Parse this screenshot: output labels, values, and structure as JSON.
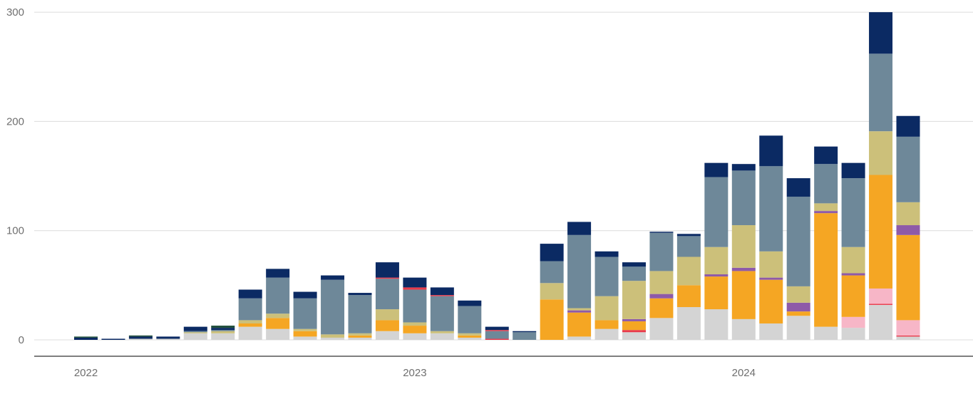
{
  "chart_data": {
    "type": "bar",
    "stacked": true,
    "ylim": [
      0,
      300
    ],
    "y_ticks": [
      0,
      100,
      200,
      300
    ],
    "x_tick_labels": [
      {
        "label": "2022",
        "at_bar": 0
      },
      {
        "label": "2023",
        "at_bar": 12
      },
      {
        "label": "2024",
        "at_bar": 24
      }
    ],
    "grid": true,
    "legend": "none",
    "series": [
      {
        "color": "#d4d4d4",
        "values": [
          0,
          0,
          1,
          1,
          6,
          6,
          12,
          10,
          3,
          2,
          2,
          8,
          6,
          6,
          2,
          0,
          0,
          0,
          3,
          10,
          7,
          20,
          30,
          28,
          19,
          15,
          22,
          12,
          11,
          32,
          3
        ]
      },
      {
        "color": "#e8394a",
        "values": [
          0,
          0,
          0,
          0,
          0,
          0,
          0,
          0,
          0,
          0,
          0,
          0,
          0,
          0,
          0,
          1,
          0,
          0,
          0,
          0,
          2,
          0,
          0,
          0,
          0,
          0,
          0,
          0,
          0,
          1,
          1
        ]
      },
      {
        "color": "#f7b6c7",
        "values": [
          0,
          0,
          0,
          0,
          0,
          0,
          0,
          0,
          0,
          0,
          0,
          0,
          0,
          0,
          0,
          0,
          0,
          0,
          0,
          0,
          0,
          0,
          0,
          0,
          0,
          0,
          0,
          0,
          10,
          14,
          14
        ]
      },
      {
        "color": "#f5a623",
        "values": [
          0,
          0,
          0,
          0,
          0,
          0,
          3,
          10,
          5,
          0,
          2,
          10,
          7,
          0,
          2,
          0,
          0,
          37,
          22,
          8,
          8,
          18,
          20,
          30,
          44,
          40,
          4,
          104,
          38,
          104,
          78
        ]
      },
      {
        "color": "#8e5aa8",
        "values": [
          0,
          0,
          0,
          0,
          0,
          0,
          0,
          0,
          0,
          0,
          0,
          0,
          0,
          0,
          0,
          0,
          0,
          0,
          2,
          0,
          2,
          4,
          0,
          2,
          3,
          2,
          8,
          2,
          2,
          0,
          9
        ]
      },
      {
        "color": "#ccc07a",
        "values": [
          0,
          0,
          0,
          0,
          1,
          2,
          3,
          4,
          2,
          3,
          2,
          10,
          3,
          2,
          2,
          0,
          0,
          15,
          2,
          22,
          35,
          21,
          26,
          25,
          39,
          24,
          15,
          7,
          24,
          40,
          21
        ]
      },
      {
        "color": "#6e8899",
        "values": [
          0,
          0,
          0,
          0,
          1,
          1,
          20,
          33,
          28,
          50,
          35,
          28,
          30,
          32,
          25,
          7,
          7,
          20,
          67,
          36,
          13,
          35,
          19,
          64,
          50,
          78,
          82,
          36,
          63,
          71,
          60
        ]
      },
      {
        "color": "#e8394a",
        "values": [
          0,
          0,
          0,
          0,
          0,
          0,
          0,
          0,
          0,
          0,
          0,
          1,
          2,
          1,
          0,
          1,
          0,
          0,
          0,
          0,
          0,
          0,
          0,
          0,
          0,
          0,
          0,
          0,
          0,
          0,
          0
        ]
      },
      {
        "color": "#0b2a63",
        "values": [
          2,
          1,
          2,
          2,
          4,
          2,
          8,
          8,
          6,
          4,
          2,
          14,
          9,
          7,
          5,
          3,
          1,
          16,
          12,
          5,
          4,
          1,
          2,
          13,
          6,
          28,
          17,
          16,
          14,
          38,
          19
        ]
      },
      {
        "color": "#1e4d3a",
        "values": [
          1,
          0,
          1,
          0,
          0,
          2,
          0,
          0,
          0,
          0,
          0,
          0,
          0,
          0,
          0,
          0,
          0,
          0,
          0,
          0,
          0,
          0,
          0,
          0,
          0,
          0,
          0,
          0,
          0,
          0,
          0
        ]
      }
    ]
  }
}
